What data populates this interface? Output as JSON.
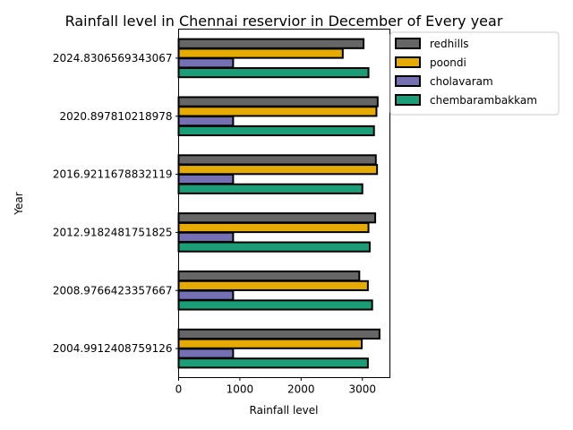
{
  "chart_data": {
    "type": "bar",
    "orientation": "horizontal",
    "title": "Rainfall level in Chennai reservior in December of Every year",
    "xlabel": "Rainfall level",
    "ylabel": "Year",
    "xlim": [
      0,
      3450
    ],
    "xticks": [
      "0",
      "1000",
      "2000",
      "3000"
    ],
    "xtick_values": [
      0,
      1000,
      2000,
      3000
    ],
    "categories": [
      "2004.9912408759126",
      "2008.9766423357667",
      "2012.9182481751825",
      "2016.9211678832119",
      "2020.897810218978",
      "2024.8306569343067"
    ],
    "series": [
      {
        "name": "redhills",
        "color": "#666666",
        "values": [
          3280,
          2950,
          3210,
          3220,
          3250,
          3020
        ]
      },
      {
        "name": "poondi",
        "color": "#e6ab02",
        "values": [
          2990,
          3090,
          3100,
          3240,
          3230,
          2680
        ]
      },
      {
        "name": "cholavaram",
        "color": "#7570b3",
        "values": [
          890,
          890,
          890,
          890,
          890,
          890
        ]
      },
      {
        "name": "chembarambakkam",
        "color": "#1b9e77",
        "values": [
          3090,
          3160,
          3120,
          3000,
          3190,
          3100
        ]
      }
    ],
    "legend": "upper right, outside plot",
    "grid": false
  }
}
